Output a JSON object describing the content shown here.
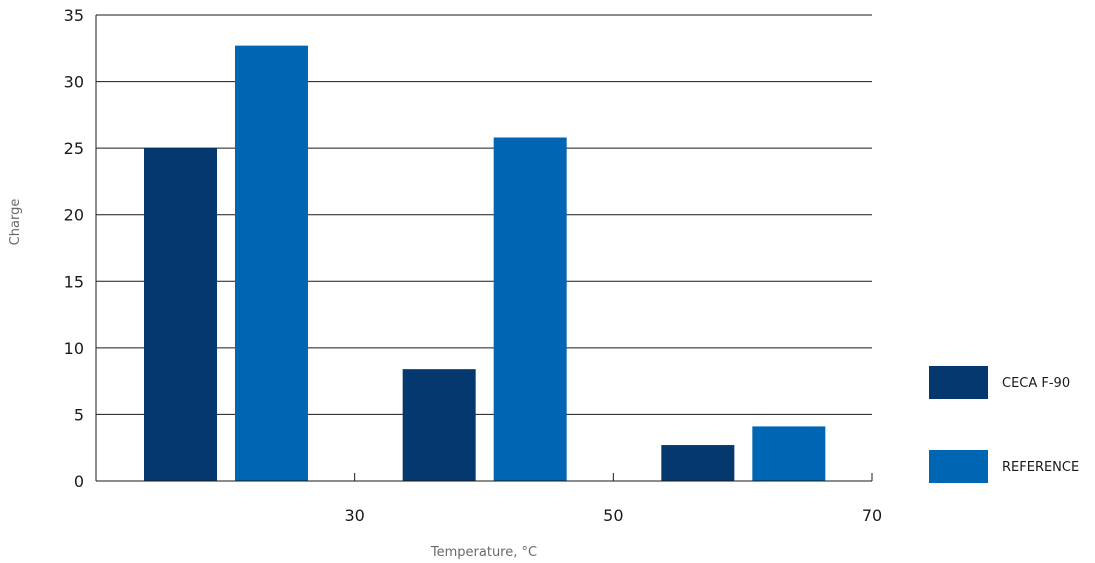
{
  "chart_data": {
    "type": "bar",
    "title": "",
    "xlabel": "Temperature, °C",
    "ylabel": "Charge",
    "ylim": [
      0,
      35
    ],
    "yticks": [
      0,
      5,
      10,
      15,
      20,
      25,
      30,
      35
    ],
    "xticks": [
      "30",
      "50",
      "70"
    ],
    "grid": true,
    "legend_position": "right",
    "categories": [
      "30",
      "50",
      "70"
    ],
    "series": [
      {
        "name": "CECA F-90",
        "color": "#04386f",
        "values": [
          25.0,
          8.4,
          2.7
        ]
      },
      {
        "name": "REFERENCE",
        "color": "#0066b3",
        "values": [
          32.7,
          25.8,
          4.1
        ]
      }
    ]
  }
}
